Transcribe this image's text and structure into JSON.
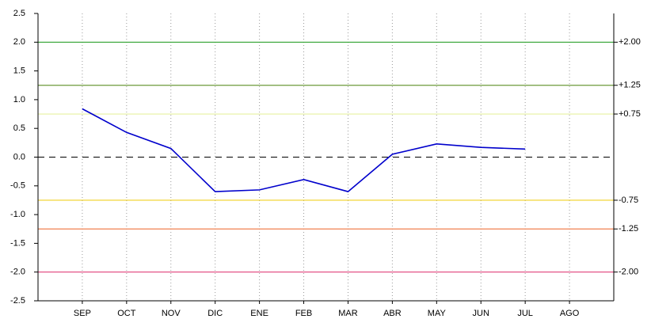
{
  "chart_data": {
    "type": "line",
    "categories": [
      null,
      "SEP",
      "OCT",
      "NOV",
      "DIC",
      "ENE",
      "FEB",
      "MAR",
      "ABR",
      "MAY",
      "JUN",
      "JUL",
      "AGO",
      null
    ],
    "series": [
      {
        "color": "#0000cc",
        "values": [
          null,
          0.84,
          0.43,
          0.15,
          -0.6,
          -0.57,
          -0.39,
          -0.6,
          0.05,
          0.23,
          0.17,
          0.14,
          null,
          null
        ]
      }
    ],
    "ylim": [
      -2.5,
      2.5
    ],
    "yticks": [
      2.5,
      {
        "value": 2,
        "label": "2.0"
      },
      1.5,
      {
        "value": 1,
        "label": "1.0"
      },
      0.5,
      {
        "value": 0,
        "label": "0.0"
      },
      -0.5,
      {
        "value": -1,
        "label": "-1.0"
      },
      -1.5,
      {
        "value": -2,
        "label": "-2.0"
      },
      -2.5
    ],
    "reference_lines": [
      {
        "value": 2,
        "label": "+2.00",
        "color": "#2ca02c"
      },
      {
        "value": 1.25,
        "label": "+1.25",
        "color": "#6b9a3a"
      },
      {
        "value": 0.75,
        "label": "+0.75",
        "color": "#e6f0a0"
      },
      {
        "value": -0.75,
        "label": "-0.75",
        "color": "#f0d020"
      },
      {
        "value": -1.25,
        "label": "-1.25",
        "color": "#f08050"
      },
      {
        "value": -2,
        "label": "-2.00",
        "color": "#e0407a"
      }
    ],
    "zero_line": true,
    "grid": true
  }
}
